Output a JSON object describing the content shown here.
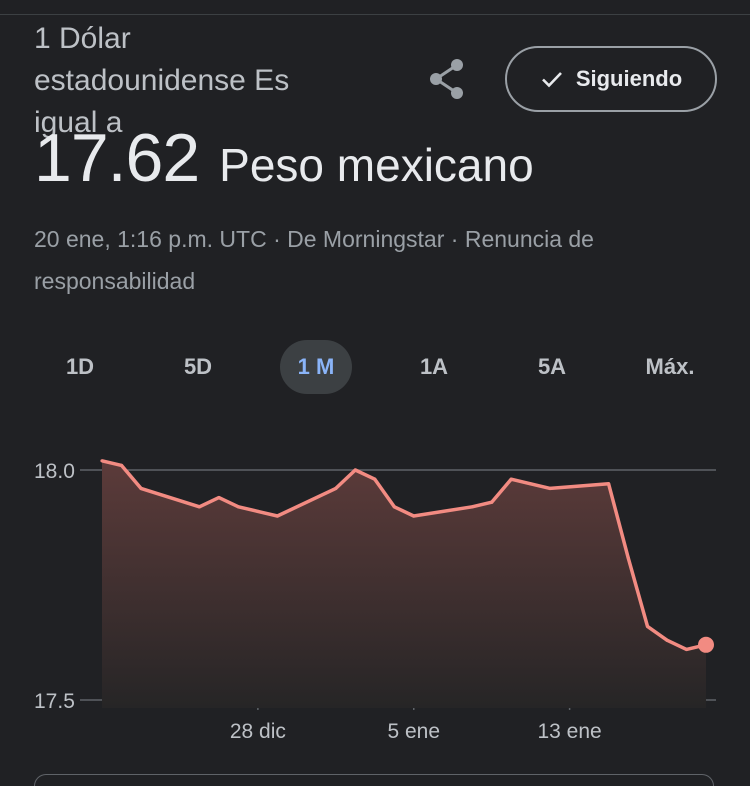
{
  "header": {
    "line1": "1 Dólar",
    "line2": "estadounidense Es",
    "line3": "igual a",
    "share_icon": "share-icon",
    "follow_label": "Siguiendo",
    "follow_icon": "check-icon"
  },
  "rate": {
    "value": "17.62",
    "currency": "Peso mexicano"
  },
  "meta": {
    "timestamp": "20 ene, 1:16 p.m. UTC",
    "separator1": " · ",
    "source": "De Morningstar",
    "separator2": " · ",
    "disclaimer": "Renuncia de responsabilidad"
  },
  "tabs": [
    {
      "label": "1D",
      "active": false
    },
    {
      "label": "5D",
      "active": false
    },
    {
      "label": "1 M",
      "active": true
    },
    {
      "label": "1A",
      "active": false
    },
    {
      "label": "5A",
      "active": false
    },
    {
      "label": "Máx.",
      "active": false
    }
  ],
  "colors": {
    "line": "#f28b82",
    "fill_top": "#5c3b3a",
    "fill_bottom": "#262526",
    "gridline": "#5f6368",
    "active_tab_text": "#8ab4f8"
  },
  "chart_data": {
    "type": "area",
    "x": [
      "2023-12-20",
      "2023-12-21",
      "2023-12-22",
      "2023-12-25",
      "2023-12-26",
      "2023-12-27",
      "2023-12-28",
      "2023-12-29",
      "2024-01-01",
      "2024-01-02",
      "2024-01-03",
      "2024-01-04",
      "2024-01-05",
      "2024-01-08",
      "2024-01-09",
      "2024-01-10",
      "2024-01-11",
      "2024-01-12",
      "2024-01-15",
      "2024-01-16",
      "2024-01-17",
      "2024-01-18",
      "2024-01-19",
      "2024-01-20"
    ],
    "values": [
      18.02,
      18.01,
      17.96,
      17.92,
      17.94,
      17.92,
      17.91,
      17.9,
      17.96,
      18.0,
      17.98,
      17.92,
      17.9,
      17.92,
      17.93,
      17.98,
      17.97,
      17.96,
      17.97,
      17.81,
      17.66,
      17.63,
      17.61,
      17.62
    ],
    "y_ticks": [
      {
        "value": 18.0,
        "label": "18.0"
      },
      {
        "value": 17.5,
        "label": "17.5"
      }
    ],
    "x_ticks": [
      {
        "date": "2023-12-28",
        "label": "28 dic"
      },
      {
        "date": "2024-01-05",
        "label": "5 ene"
      },
      {
        "date": "2024-01-13",
        "label": "13 ene"
      }
    ],
    "ylim": [
      17.5,
      18.0
    ],
    "grid": true
  }
}
